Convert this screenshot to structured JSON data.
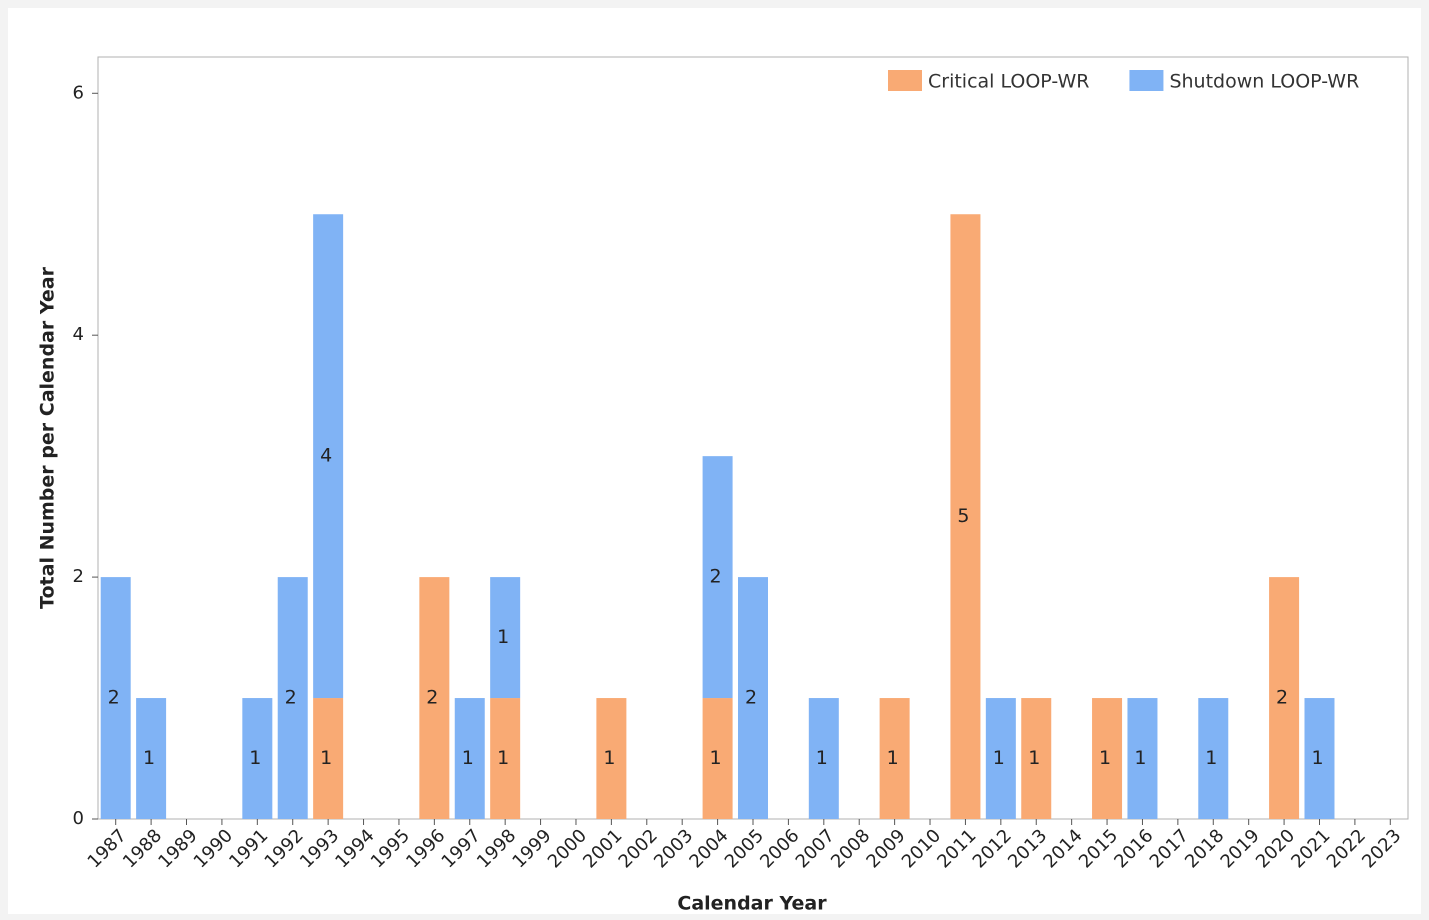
{
  "chart_data": {
    "type": "stacked_bar",
    "categories": [
      "1987",
      "1988",
      "1989",
      "1990",
      "1991",
      "1992",
      "1993",
      "1994",
      "1995",
      "1996",
      "1997",
      "1998",
      "1999",
      "2000",
      "2001",
      "2002",
      "2003",
      "2004",
      "2005",
      "2006",
      "2007",
      "2008",
      "2009",
      "2010",
      "2011",
      "2012",
      "2013",
      "2014",
      "2015",
      "2016",
      "2017",
      "2018",
      "2019",
      "2020",
      "2021",
      "2022",
      "2023"
    ],
    "series": [
      {
        "name": "Critical LOOP-WR",
        "color": "#f9aa74",
        "values": [
          0,
          0,
          0,
          0,
          0,
          0,
          1,
          0,
          0,
          2,
          0,
          1,
          0,
          0,
          1,
          0,
          0,
          1,
          0,
          0,
          0,
          0,
          1,
          0,
          5,
          0,
          1,
          0,
          1,
          0,
          0,
          0,
          0,
          2,
          0,
          0,
          0
        ]
      },
      {
        "name": "Shutdown LOOP-WR",
        "color": "#80b3f5",
        "values": [
          2,
          1,
          0,
          0,
          1,
          2,
          4,
          0,
          0,
          0,
          1,
          1,
          0,
          0,
          0,
          0,
          0,
          2,
          2,
          0,
          1,
          0,
          0,
          0,
          0,
          1,
          0,
          0,
          0,
          1,
          0,
          1,
          0,
          0,
          1,
          0,
          0
        ]
      }
    ],
    "xlabel": "Calendar Year",
    "ylabel": "Total Number per Calendar Year",
    "ylim": [
      0,
      6.3
    ],
    "yticks": [
      0,
      2,
      4,
      6
    ],
    "legend": "top-right"
  }
}
